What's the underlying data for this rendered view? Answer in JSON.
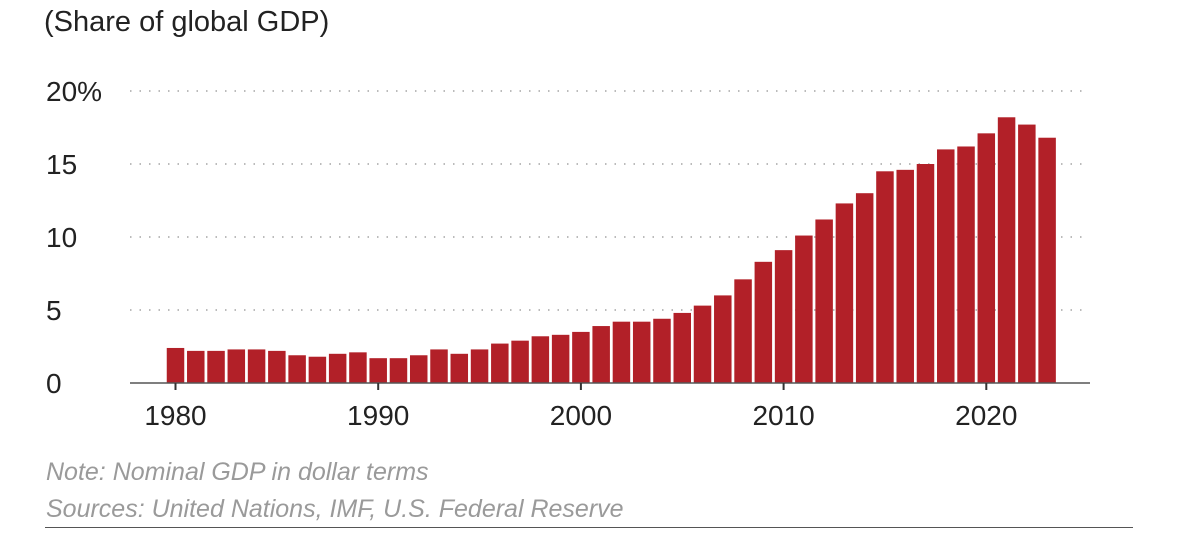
{
  "chart_data": {
    "type": "bar",
    "title": "(Share of global GDP)",
    "xlabel": "",
    "ylabel": "",
    "ylim": [
      0,
      20
    ],
    "yticks": [
      0,
      5,
      10,
      15,
      20
    ],
    "ytick_labels": [
      "0",
      "5",
      "10",
      "15",
      "20%"
    ],
    "xticks": [
      1980,
      1990,
      2000,
      2010,
      2020
    ],
    "xtick_labels": [
      "1980",
      "1990",
      "2000",
      "2010",
      "2020"
    ],
    "grid": "horizontal dotted",
    "bar_color": "#b22028",
    "categories": [
      1980,
      1981,
      1982,
      1983,
      1984,
      1985,
      1986,
      1987,
      1988,
      1989,
      1990,
      1991,
      1992,
      1993,
      1994,
      1995,
      1996,
      1997,
      1998,
      1999,
      2000,
      2001,
      2002,
      2003,
      2004,
      2005,
      2006,
      2007,
      2008,
      2009,
      2010,
      2011,
      2012,
      2013,
      2014,
      2015,
      2016,
      2017,
      2018,
      2019,
      2020,
      2021,
      2022,
      2023
    ],
    "values": [
      2.4,
      2.2,
      2.2,
      2.3,
      2.3,
      2.2,
      1.9,
      1.8,
      2.0,
      2.1,
      1.7,
      1.7,
      1.9,
      2.3,
      2.0,
      2.3,
      2.7,
      2.9,
      3.2,
      3.3,
      3.5,
      3.9,
      4.2,
      4.2,
      4.4,
      4.8,
      5.3,
      6.0,
      7.1,
      8.3,
      9.1,
      10.1,
      11.2,
      12.3,
      13.0,
      14.5,
      14.6,
      15.0,
      16.0,
      16.2,
      17.1,
      18.2,
      17.7,
      16.8
    ],
    "notes": [
      "Note: Nominal GDP in dollar terms",
      "Sources: United Nations, IMF, U.S. Federal Reserve"
    ]
  }
}
